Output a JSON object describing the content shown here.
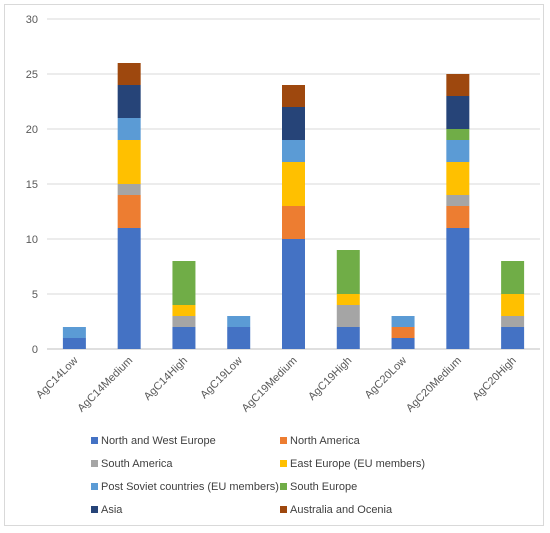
{
  "chart_data": {
    "type": "bar",
    "stacked": true,
    "title": "",
    "xlabel": "",
    "ylabel": "",
    "ylim": [
      0,
      30
    ],
    "yticks": [
      0,
      5,
      10,
      15,
      20,
      25,
      30
    ],
    "grid": true,
    "legend_position": "bottom",
    "categories": [
      "AgC14Low",
      "AgC14Medium",
      "AgC14High",
      "AgC19Low",
      "AgC19Medium",
      "AgC19High",
      "AgC20Low",
      "AgC20Medium",
      "AgC20High"
    ],
    "series": [
      {
        "name": "North and West Europe",
        "color": "#4472c4",
        "values": [
          1,
          11,
          2,
          2,
          10,
          2,
          1,
          11,
          2
        ]
      },
      {
        "name": "North America",
        "color": "#ed7d31",
        "values": [
          0,
          3,
          0,
          0,
          3,
          0,
          1,
          2,
          0
        ]
      },
      {
        "name": "South America",
        "color": "#a5a5a5",
        "values": [
          0,
          1,
          1,
          0,
          0,
          2,
          0,
          1,
          1
        ]
      },
      {
        "name": "East Europe (EU members)",
        "color": "#ffc000",
        "values": [
          0,
          4,
          1,
          0,
          4,
          1,
          0,
          3,
          2
        ]
      },
      {
        "name": "Post Soviet countries (EU members)",
        "color": "#5b9bd5",
        "values": [
          1,
          2,
          0,
          1,
          2,
          0,
          1,
          2,
          0
        ]
      },
      {
        "name": "South Europe",
        "color": "#70ad47",
        "values": [
          0,
          0,
          4,
          0,
          0,
          4,
          0,
          1,
          3
        ]
      },
      {
        "name": "Asia",
        "color": "#264478",
        "values": [
          0,
          3,
          0,
          0,
          3,
          0,
          0,
          3,
          0
        ]
      },
      {
        "name": "Australia and Ocenia",
        "color": "#9e480e",
        "values": [
          0,
          2,
          0,
          0,
          2,
          0,
          0,
          2,
          0
        ]
      }
    ]
  }
}
